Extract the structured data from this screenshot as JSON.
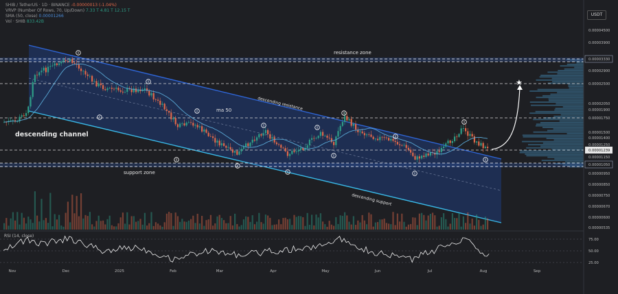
{
  "legend": {
    "symbol": "SHIB / TetherUS · 1D · BINANCE",
    "change": "-0.00000013 (-1.04%)",
    "vrvp": "VRVP (Number Of Rows, 70, Up/Down)",
    "vrvp_vals": "7.33 T  4.81 T  12.15 T",
    "sma": "SMA (50, close)",
    "sma_val": "0.00001266",
    "vol": "Vol · SHIB",
    "vol_val": "833.42B"
  },
  "currency": "USDT",
  "rsi_label": "RSI (14, close)",
  "colors": {
    "up": "#2e9e87",
    "down": "#e0694a",
    "channel": "#1f3a7a",
    "resistance_line": "#2f66d8",
    "support_line": "#39b8e6",
    "sma": "#5aa9d6",
    "rsi": "#f2f2f2"
  },
  "chart_data": {
    "type": "candlestick",
    "x_ticks": [
      "Nov",
      "Dec",
      "2025",
      "Feb",
      "Mar",
      "Apr",
      "May",
      "Jun",
      "Jul",
      "Aug",
      "Sep"
    ],
    "price_ticks": [
      "0.00004500",
      "0.00003900",
      "0.00003330",
      "0.00002900",
      "0.00002500",
      "0.00002050",
      "0.00001900",
      "0.00001750",
      "0.00001500",
      "0.00001400",
      "0.00001250",
      "0.00001239",
      "0.00001150",
      "0.00001050",
      "0.00000950",
      "0.00000850",
      "0.00000750",
      "0.00000670",
      "0.00000600",
      "0.00000535"
    ],
    "current_price": "0.00001239",
    "resistance_zone": "0.00003330",
    "support_zone": "0.00001050",
    "rsi_ticks": [
      "75.00",
      "50.00",
      "25.00"
    ],
    "annotations": {
      "resistance_zone": "resistance zone",
      "support_zone": "support zone",
      "descending_channel": "descending channel",
      "descending_resistance": "descending resistance",
      "descending_support": "descending support",
      "ma50": "ma 50"
    }
  }
}
